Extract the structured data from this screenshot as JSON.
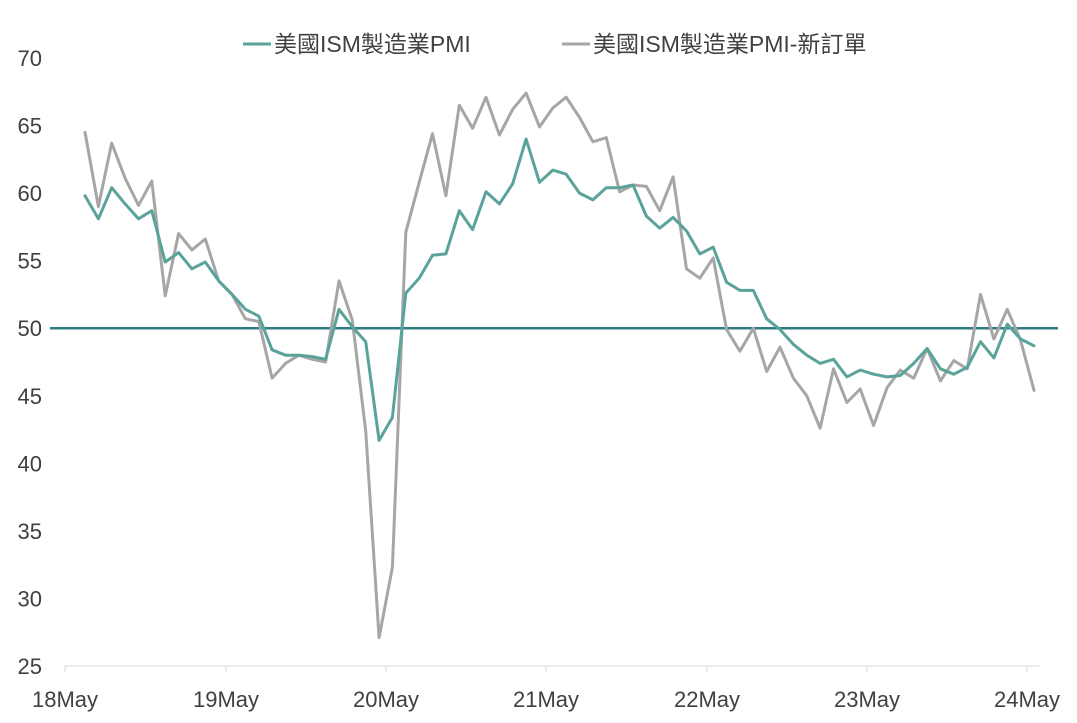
{
  "chart_data": {
    "type": "line",
    "title": "",
    "xlabel": "",
    "ylabel": "",
    "ylim": [
      25,
      70
    ],
    "yticks": [
      25,
      30,
      35,
      40,
      45,
      50,
      55,
      60,
      65,
      70
    ],
    "x_tick_labels": [
      "18May",
      "19May",
      "20May",
      "21May",
      "22May",
      "23May",
      "24May"
    ],
    "x_start": "2018-01",
    "legend_position": "top-center",
    "grid": false,
    "reference_line": {
      "value": 50,
      "color": "#2e7d80"
    },
    "series": [
      {
        "name": "美國ISM製造業PMI",
        "color": "#5aa39a",
        "values": [
          59.8,
          58.1,
          60.4,
          59.2,
          58.1,
          58.7,
          54.9,
          55.6,
          54.4,
          54.9,
          53.5,
          52.5,
          51.4,
          50.9,
          48.4,
          48.0,
          48.0,
          47.9,
          47.7,
          51.4,
          50.1,
          49.0,
          41.7,
          43.4,
          52.6,
          53.7,
          55.4,
          55.5,
          58.7,
          57.3,
          60.1,
          59.2,
          60.7,
          64.0,
          60.8,
          61.7,
          61.4,
          60.0,
          59.5,
          60.4,
          60.4,
          60.6,
          58.3,
          57.4,
          58.2,
          57.2,
          55.5,
          56.0,
          53.4,
          52.8,
          52.8,
          50.7,
          49.9,
          48.8,
          48.0,
          47.4,
          47.7,
          46.4,
          46.9,
          46.6,
          46.4,
          46.5,
          47.4,
          48.5,
          47.0,
          46.6,
          47.1,
          49.0,
          47.8,
          50.3,
          49.2,
          48.7
        ]
      },
      {
        "name": "美國ISM製造業PMI-新訂單",
        "color": "#a6a6a6",
        "values": [
          64.5,
          59.0,
          63.7,
          61.1,
          59.1,
          60.9,
          52.4,
          57.0,
          55.8,
          56.6,
          53.5,
          52.5,
          50.7,
          50.5,
          46.3,
          47.4,
          48.0,
          47.7,
          47.5,
          53.5,
          50.6,
          42.4,
          27.1,
          32.3,
          57.1,
          60.8,
          64.4,
          59.8,
          66.5,
          64.8,
          67.1,
          64.3,
          66.2,
          67.4,
          64.9,
          66.3,
          67.1,
          65.6,
          63.8,
          64.1,
          60.1,
          60.6,
          60.5,
          58.7,
          61.2,
          54.4,
          53.7,
          55.2,
          49.9,
          48.3,
          50.0,
          46.8,
          48.6,
          46.3,
          45.0,
          42.6,
          47.0,
          44.5,
          45.5,
          42.8,
          45.6,
          46.9,
          46.3,
          48.5,
          46.1,
          47.6,
          47.0,
          52.5,
          49.2,
          51.4,
          49.1,
          45.4
        ]
      }
    ]
  }
}
